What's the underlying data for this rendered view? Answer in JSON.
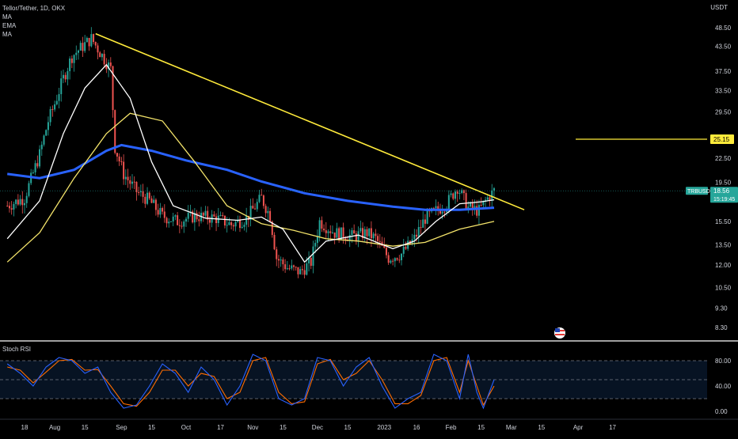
{
  "header": {
    "symbol_line": "Tellor/Tether, 1D, OKX",
    "indicators": [
      "MA",
      "EMA",
      "MA"
    ],
    "currency": "USDT"
  },
  "oscillator": {
    "title": "Stoch RSI"
  },
  "colors": {
    "background": "#000000",
    "up_candle": "#26a69a",
    "down_candle": "#ef5350",
    "trendline": "#ffeb3b",
    "ma_fast": "#ffffff",
    "ema": "#f5e56b",
    "ma_slow": "#2962ff",
    "stoch_k": "#2962ff",
    "stoch_d": "#ff6d00",
    "price_tag": "#26a69a",
    "level_tag": "#ffeb3b"
  },
  "chart_data": [
    {
      "type": "candlestick",
      "title": "Tellor/Tether, 1D, OKX",
      "y_scale": "log",
      "y_ticks": [
        48.5,
        43.5,
        37.5,
        33.5,
        29.5,
        25.15,
        22.5,
        19.5,
        15.5,
        13.5,
        12.0,
        10.5,
        9.3,
        8.3
      ],
      "y_tick_labels": [
        "48.50",
        "43.50",
        "37.50",
        "33.50",
        "29.50",
        "25.15",
        "22.50",
        "19.50",
        "15.50",
        "13.50",
        "12.00",
        "10.50",
        "9.30",
        "8.30"
      ],
      "x_ticks": [
        "18",
        "Aug",
        "15",
        "Sep",
        "15",
        "Oct",
        "17",
        "Nov",
        "15",
        "Dec",
        "15",
        "2023",
        "16",
        "Feb",
        "15",
        "Mar",
        "15",
        "Apr",
        "17"
      ],
      "last_price": {
        "symbol": "TRBUSDT",
        "price": "18.56",
        "countdown": "15:19:45"
      },
      "horizontal_level": {
        "value": 25.15,
        "label": "25.15"
      },
      "trendline": {
        "start": {
          "date": "2022-08-20",
          "price": 46.8
        },
        "end": {
          "date": "2023-03-07",
          "price": 16.6
        }
      },
      "close_path": [
        [
          "2022-07-10",
          17.0
        ],
        [
          "2022-07-18",
          17.8
        ],
        [
          "2022-07-25",
          23.0
        ],
        [
          "2022-07-29",
          28.0
        ],
        [
          "2022-08-01",
          31.0
        ],
        [
          "2022-08-05",
          36.0
        ],
        [
          "2022-08-09",
          41.0
        ],
        [
          "2022-08-13",
          43.0
        ],
        [
          "2022-08-18",
          45.5
        ],
        [
          "2022-08-22",
          42.0
        ],
        [
          "2022-08-27",
          38.0
        ],
        [
          "2022-08-29",
          24.0
        ],
        [
          "2022-09-02",
          20.5
        ],
        [
          "2022-09-08",
          18.5
        ],
        [
          "2022-09-14",
          17.5
        ],
        [
          "2022-09-20",
          16.0
        ],
        [
          "2022-09-27",
          15.5
        ],
        [
          "2022-10-05",
          16.0
        ],
        [
          "2022-10-15",
          15.8
        ],
        [
          "2022-10-22",
          15.2
        ],
        [
          "2022-10-29",
          15.8
        ],
        [
          "2022-11-05",
          17.8
        ],
        [
          "2022-11-09",
          16.0
        ],
        [
          "2022-11-12",
          12.5
        ],
        [
          "2022-11-17",
          11.8
        ],
        [
          "2022-11-23",
          11.5
        ],
        [
          "2022-11-28",
          12.2
        ],
        [
          "2022-12-02",
          15.5
        ],
        [
          "2022-12-09",
          14.5
        ],
        [
          "2022-12-17",
          14.2
        ],
        [
          "2022-12-24",
          14.5
        ],
        [
          "2022-12-28",
          14.0
        ],
        [
          "2023-01-03",
          12.5
        ],
        [
          "2023-01-09",
          12.8
        ],
        [
          "2023-01-15",
          14.0
        ],
        [
          "2023-01-20",
          15.8
        ],
        [
          "2023-01-25",
          16.5
        ],
        [
          "2023-01-30",
          17.2
        ],
        [
          "2023-02-04",
          19.0
        ],
        [
          "2023-02-09",
          16.8
        ],
        [
          "2023-02-14",
          16.5
        ],
        [
          "2023-02-17",
          17.5
        ],
        [
          "2023-02-21",
          18.56
        ]
      ],
      "ma_fast_path": [
        [
          "2022-07-10",
          14.0
        ],
        [
          "2022-07-25",
          17.5
        ],
        [
          "2022-08-05",
          26.0
        ],
        [
          "2022-08-15",
          34.0
        ],
        [
          "2022-08-25",
          39.0
        ],
        [
          "2022-09-05",
          32.0
        ],
        [
          "2022-09-15",
          22.0
        ],
        [
          "2022-09-25",
          17.0
        ],
        [
          "2022-10-10",
          15.8
        ],
        [
          "2022-10-25",
          15.6
        ],
        [
          "2022-11-05",
          15.9
        ],
        [
          "2022-11-15",
          14.8
        ],
        [
          "2022-11-25",
          12.2
        ],
        [
          "2022-12-05",
          13.8
        ],
        [
          "2022-12-20",
          14.3
        ],
        [
          "2023-01-05",
          13.2
        ],
        [
          "2023-01-15",
          13.8
        ],
        [
          "2023-01-25",
          15.5
        ],
        [
          "2023-02-05",
          17.2
        ],
        [
          "2023-02-15",
          17.4
        ],
        [
          "2023-02-21",
          17.6
        ]
      ],
      "ema_path": [
        [
          "2022-07-10",
          12.2
        ],
        [
          "2022-07-25",
          14.5
        ],
        [
          "2022-08-10",
          20.0
        ],
        [
          "2022-08-25",
          26.0
        ],
        [
          "2022-09-05",
          29.3
        ],
        [
          "2022-09-20",
          28.0
        ],
        [
          "2022-10-05",
          22.0
        ],
        [
          "2022-10-20",
          17.0
        ],
        [
          "2022-11-05",
          15.3
        ],
        [
          "2022-11-20",
          14.7
        ],
        [
          "2022-12-05",
          14.0
        ],
        [
          "2022-12-20",
          13.8
        ],
        [
          "2023-01-05",
          13.4
        ],
        [
          "2023-01-20",
          13.7
        ],
        [
          "2023-02-05",
          14.8
        ],
        [
          "2023-02-21",
          15.5
        ]
      ],
      "ma_slow_path": [
        [
          "2022-07-10",
          20.5
        ],
        [
          "2022-07-25",
          20.0
        ],
        [
          "2022-08-10",
          21.0
        ],
        [
          "2022-08-25",
          23.5
        ],
        [
          "2022-09-01",
          24.3
        ],
        [
          "2022-09-15",
          23.5
        ],
        [
          "2022-10-01",
          22.2
        ],
        [
          "2022-10-20",
          21.0
        ],
        [
          "2022-11-05",
          19.6
        ],
        [
          "2022-11-25",
          18.3
        ],
        [
          "2022-12-15",
          17.5
        ],
        [
          "2023-01-05",
          16.9
        ],
        [
          "2023-01-20",
          16.6
        ],
        [
          "2023-02-05",
          16.6
        ],
        [
          "2023-02-21",
          16.8
        ]
      ]
    },
    {
      "type": "line",
      "title": "Stoch RSI",
      "y_ticks": [
        80,
        40,
        0
      ],
      "y_tick_labels": [
        "80.00",
        "40.00",
        "0.00"
      ],
      "bands": [
        80,
        50,
        20
      ],
      "k_path": [
        [
          "2022-07-10",
          75
        ],
        [
          "2022-07-16",
          60
        ],
        [
          "2022-07-22",
          40
        ],
        [
          "2022-07-28",
          70
        ],
        [
          "2022-08-03",
          85
        ],
        [
          "2022-08-09",
          80
        ],
        [
          "2022-08-15",
          60
        ],
        [
          "2022-08-21",
          70
        ],
        [
          "2022-08-27",
          30
        ],
        [
          "2022-09-02",
          5
        ],
        [
          "2022-09-08",
          10
        ],
        [
          "2022-09-14",
          40
        ],
        [
          "2022-09-20",
          75
        ],
        [
          "2022-09-26",
          60
        ],
        [
          "2022-10-02",
          30
        ],
        [
          "2022-10-08",
          70
        ],
        [
          "2022-10-14",
          50
        ],
        [
          "2022-10-20",
          10
        ],
        [
          "2022-10-26",
          40
        ],
        [
          "2022-11-01",
          90
        ],
        [
          "2022-11-07",
          80
        ],
        [
          "2022-11-13",
          20
        ],
        [
          "2022-11-19",
          10
        ],
        [
          "2022-11-25",
          20
        ],
        [
          "2022-12-01",
          85
        ],
        [
          "2022-12-07",
          80
        ],
        [
          "2022-12-13",
          40
        ],
        [
          "2022-12-19",
          70
        ],
        [
          "2022-12-25",
          85
        ],
        [
          "2022-12-31",
          40
        ],
        [
          "2023-01-06",
          5
        ],
        [
          "2023-01-12",
          20
        ],
        [
          "2023-01-18",
          30
        ],
        [
          "2023-01-24",
          90
        ],
        [
          "2023-01-30",
          80
        ],
        [
          "2023-02-05",
          20
        ],
        [
          "2023-02-09",
          90
        ],
        [
          "2023-02-13",
          30
        ],
        [
          "2023-02-16",
          5
        ],
        [
          "2023-02-21",
          50
        ]
      ],
      "d_path": [
        [
          "2022-07-10",
          70
        ],
        [
          "2022-07-16",
          65
        ],
        [
          "2022-07-22",
          45
        ],
        [
          "2022-07-28",
          62
        ],
        [
          "2022-08-03",
          80
        ],
        [
          "2022-08-09",
          82
        ],
        [
          "2022-08-15",
          65
        ],
        [
          "2022-08-21",
          66
        ],
        [
          "2022-08-27",
          40
        ],
        [
          "2022-09-02",
          12
        ],
        [
          "2022-09-08",
          8
        ],
        [
          "2022-09-14",
          30
        ],
        [
          "2022-09-20",
          65
        ],
        [
          "2022-09-26",
          65
        ],
        [
          "2022-10-02",
          40
        ],
        [
          "2022-10-08",
          60
        ],
        [
          "2022-10-14",
          55
        ],
        [
          "2022-10-20",
          20
        ],
        [
          "2022-10-26",
          30
        ],
        [
          "2022-11-01",
          80
        ],
        [
          "2022-11-07",
          85
        ],
        [
          "2022-11-13",
          30
        ],
        [
          "2022-11-19",
          12
        ],
        [
          "2022-11-25",
          15
        ],
        [
          "2022-12-01",
          75
        ],
        [
          "2022-12-07",
          82
        ],
        [
          "2022-12-13",
          50
        ],
        [
          "2022-12-19",
          60
        ],
        [
          "2022-12-25",
          80
        ],
        [
          "2022-12-31",
          50
        ],
        [
          "2023-01-06",
          12
        ],
        [
          "2023-01-12",
          12
        ],
        [
          "2023-01-18",
          25
        ],
        [
          "2023-01-24",
          80
        ],
        [
          "2023-01-30",
          85
        ],
        [
          "2023-02-05",
          30
        ],
        [
          "2023-02-09",
          80
        ],
        [
          "2023-02-13",
          40
        ],
        [
          "2023-02-16",
          10
        ],
        [
          "2023-02-21",
          40
        ]
      ]
    }
  ]
}
